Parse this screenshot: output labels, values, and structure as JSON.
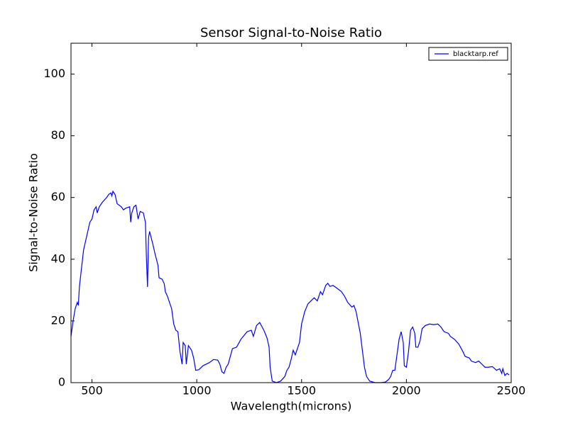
{
  "chart_data": {
    "type": "line",
    "title": "Sensor Signal-to-Noise Ratio",
    "x_label": "Wavelength(microns)",
    "y_label": "Signal-to-Noise Ratio",
    "x": [
      400,
      410,
      420,
      430,
      435,
      440,
      450,
      460,
      480,
      490,
      500,
      510,
      520,
      525,
      535,
      550,
      570,
      580,
      590,
      595,
      600,
      610,
      620,
      640,
      650,
      660,
      680,
      685,
      690,
      700,
      710,
      720,
      730,
      745,
      755,
      760,
      765,
      770,
      775,
      790,
      800,
      815,
      820,
      835,
      845,
      850,
      860,
      870,
      880,
      890,
      900,
      910,
      920,
      930,
      935,
      945,
      950,
      960,
      975,
      985,
      995,
      1010,
      1030,
      1060,
      1080,
      1100,
      1110,
      1120,
      1130,
      1140,
      1150,
      1170,
      1190,
      1210,
      1240,
      1260,
      1270,
      1285,
      1300,
      1320,
      1335,
      1345,
      1350,
      1360,
      1380,
      1400,
      1420,
      1430,
      1440,
      1450,
      1460,
      1470,
      1490,
      1500,
      1515,
      1530,
      1545,
      1560,
      1575,
      1590,
      1600,
      1615,
      1625,
      1635,
      1650,
      1665,
      1690,
      1705,
      1720,
      1740,
      1750,
      1760,
      1780,
      1800,
      1810,
      1825,
      1850,
      1880,
      1900,
      1915,
      1925,
      1935,
      1945,
      1955,
      1965,
      1975,
      1985,
      1990,
      2000,
      2010,
      2020,
      2030,
      2040,
      2045,
      2055,
      2065,
      2075,
      2090,
      2110,
      2130,
      2150,
      2165,
      2180,
      2200,
      2210,
      2230,
      2250,
      2270,
      2280,
      2300,
      2310,
      2330,
      2345,
      2360,
      2375,
      2390,
      2410,
      2430,
      2445,
      2455,
      2460,
      2470,
      2480,
      2490
    ],
    "series": [
      {
        "name": "blacktarp.ref",
        "color": "#0000ff",
        "values": [
          15,
          20,
          24,
          26,
          25,
          31,
          37,
          43,
          49,
          52,
          53,
          56,
          57,
          55,
          57,
          58.5,
          60,
          61,
          61.5,
          60.5,
          62,
          61,
          58,
          57,
          56,
          56.5,
          57,
          52,
          55,
          57,
          57.5,
          53,
          55.5,
          55,
          52,
          40,
          31,
          47,
          49,
          45,
          42,
          38,
          34,
          33.5,
          32,
          29.5,
          28,
          26,
          24,
          19,
          17,
          16.5,
          10,
          6,
          13,
          12,
          6,
          12,
          10.5,
          8,
          4,
          4.2,
          5.5,
          6.5,
          7.5,
          7.3,
          6,
          3.5,
          3,
          5,
          6,
          11,
          11.5,
          14,
          16.5,
          17,
          15,
          18.5,
          19.5,
          17,
          14.5,
          11.5,
          5,
          0.5,
          0,
          0.5,
          2,
          4,
          5,
          7.5,
          10.5,
          9,
          13,
          19,
          23,
          25.5,
          26.5,
          27.5,
          26.5,
          29.5,
          28.5,
          31.5,
          32.2,
          31.2,
          31.5,
          30.8,
          29.5,
          28,
          26,
          24.5,
          25,
          23,
          16,
          5,
          2,
          0.5,
          0,
          0,
          0.2,
          1,
          2,
          4,
          4,
          9,
          14,
          16.5,
          13,
          5.5,
          5,
          10,
          17,
          18,
          16,
          11.5,
          11.5,
          13.5,
          17.5,
          18.5,
          19,
          18.8,
          19,
          18,
          16.5,
          16,
          15,
          14,
          12.5,
          10,
          8.5,
          8,
          7,
          6.5,
          7,
          6,
          5,
          5,
          5.2,
          4,
          4.5,
          3,
          4.5,
          2.3,
          3,
          2.5
        ]
      }
    ],
    "xlim": [
      400,
      2500
    ],
    "ylim": [
      0,
      110
    ],
    "xticks": [
      500,
      1000,
      1500,
      2000,
      2500
    ],
    "yticks": [
      0,
      20,
      40,
      60,
      80,
      100
    ],
    "legend": "upper right"
  }
}
